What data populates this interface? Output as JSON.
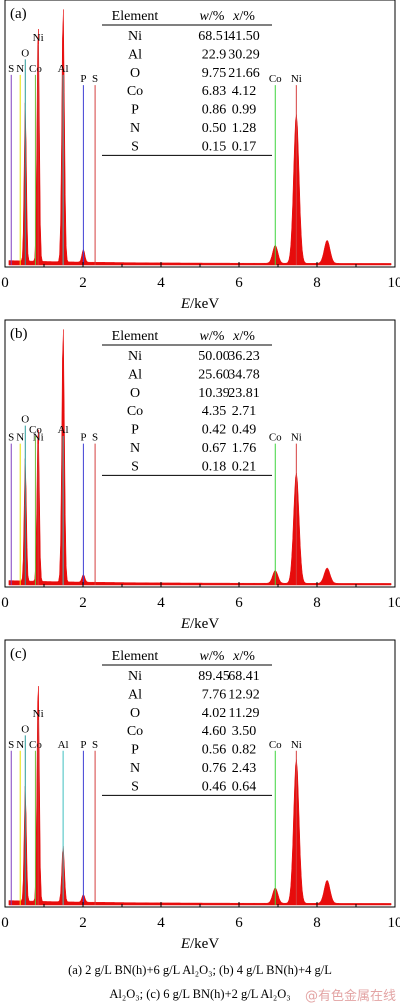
{
  "chart_data": [
    {
      "type": "area",
      "panel_label": "(a)",
      "xlabel_italic": "E",
      "xlabel_unit": "/keV",
      "xlim": [
        0,
        10
      ],
      "xticks": [
        "0",
        "2",
        "4",
        "6",
        "8",
        "10"
      ],
      "table": {
        "headers": [
          "Element",
          "w/%",
          "x/%"
        ],
        "rows": [
          [
            "Ni",
            "68.51",
            "41.50"
          ],
          [
            "Al",
            "22.9",
            "30.29"
          ],
          [
            "O",
            "9.75",
            "21.66"
          ],
          [
            "Co",
            "6.83",
            "4.12"
          ],
          [
            "P",
            "0.86",
            "0.99"
          ],
          [
            "N",
            "0.50",
            "1.28"
          ],
          [
            "S",
            "0.15",
            "0.17"
          ]
        ]
      },
      "markers": [
        {
          "label": "S",
          "x": 0.16,
          "h": 0.74,
          "color": "#7f3fbf"
        },
        {
          "label": "N",
          "x": 0.39,
          "h": 0.74,
          "color": "#e8e000"
        },
        {
          "label": "O",
          "x": 0.52,
          "h": 0.8,
          "color": "#2a9a9a"
        },
        {
          "label": "Co",
          "x": 0.78,
          "h": 0.74,
          "color": "#6fbf3f"
        },
        {
          "label": "Ni",
          "x": 0.85,
          "h": 0.86,
          "color": "#d43f3f"
        },
        {
          "label": "Al",
          "x": 1.49,
          "h": 0.74,
          "color": "#3fbfbf"
        },
        {
          "label": "P",
          "x": 2.01,
          "h": 0.7,
          "color": "#3f3fd4"
        },
        {
          "label": "S",
          "x": 2.31,
          "h": 0.7,
          "color": "#d43f3f"
        },
        {
          "label": "Co",
          "x": 6.93,
          "h": 0.7,
          "color": "#3fd43f"
        },
        {
          "label": "Ni",
          "x": 7.47,
          "h": 0.7,
          "color": "#d43f3f"
        }
      ],
      "peaks": [
        {
          "x": 0.52,
          "h": 0.62
        },
        {
          "x": 0.85,
          "h": 0.95
        },
        {
          "x": 1.49,
          "h": 1.0
        },
        {
          "x": 2.01,
          "h": 0.05
        },
        {
          "x": 6.93,
          "h": 0.07
        },
        {
          "x": 7.47,
          "h": 0.58
        },
        {
          "x": 8.26,
          "h": 0.09
        }
      ]
    },
    {
      "type": "area",
      "panel_label": "(b)",
      "xlabel_italic": "E",
      "xlabel_unit": "/keV",
      "xlim": [
        0,
        10
      ],
      "xticks": [
        "0",
        "2",
        "4",
        "6",
        "8",
        "10"
      ],
      "table": {
        "headers": [
          "Element",
          "w/%",
          "x/%"
        ],
        "rows": [
          [
            "Ni",
            "50.00",
            "36.23"
          ],
          [
            "Al",
            "25.60",
            "34.78"
          ],
          [
            "O",
            "10.39",
            "23.81"
          ],
          [
            "Co",
            "4.35",
            "2.71"
          ],
          [
            "P",
            "0.42",
            "0.49"
          ],
          [
            "N",
            "0.67",
            "1.76"
          ],
          [
            "S",
            "0.18",
            "0.21"
          ]
        ]
      },
      "markers": [
        {
          "label": "S",
          "x": 0.16,
          "h": 0.55,
          "color": "#7f3fbf"
        },
        {
          "label": "N",
          "x": 0.39,
          "h": 0.55,
          "color": "#e8e000"
        },
        {
          "label": "O",
          "x": 0.52,
          "h": 0.62,
          "color": "#2a9a9a"
        },
        {
          "label": "Co",
          "x": 0.78,
          "h": 0.58,
          "color": "#6fbf3f"
        },
        {
          "label": "Ni",
          "x": 0.85,
          "h": 0.55,
          "color": "#d43f3f"
        },
        {
          "label": "Al",
          "x": 1.49,
          "h": 0.58,
          "color": "#3fbfbf"
        },
        {
          "label": "P",
          "x": 2.01,
          "h": 0.55,
          "color": "#3f3fd4"
        },
        {
          "label": "S",
          "x": 2.31,
          "h": 0.55,
          "color": "#d43f3f"
        },
        {
          "label": "Co",
          "x": 6.93,
          "h": 0.55,
          "color": "#3fd43f"
        },
        {
          "label": "Ni",
          "x": 7.47,
          "h": 0.55,
          "color": "#d43f3f"
        }
      ],
      "peaks": [
        {
          "x": 0.52,
          "h": 0.48
        },
        {
          "x": 0.85,
          "h": 0.62
        },
        {
          "x": 1.49,
          "h": 1.0
        },
        {
          "x": 2.01,
          "h": 0.03
        },
        {
          "x": 6.93,
          "h": 0.05
        },
        {
          "x": 7.47,
          "h": 0.43
        },
        {
          "x": 8.26,
          "h": 0.06
        }
      ]
    },
    {
      "type": "area",
      "panel_label": "(c)",
      "xlabel_italic": "E",
      "xlabel_unit": "/keV",
      "xlim": [
        0,
        10
      ],
      "xticks": [
        "0",
        "2",
        "4",
        "6",
        "8",
        "10"
      ],
      "table": {
        "headers": [
          "Element",
          "w/%",
          "x/%"
        ],
        "rows": [
          [
            "Ni",
            "89.45",
            "68.41"
          ],
          [
            "Al",
            "7.76",
            "12.92"
          ],
          [
            "O",
            "4.02",
            "11.29"
          ],
          [
            "Co",
            "4.60",
            "3.50"
          ],
          [
            "P",
            "0.56",
            "0.82"
          ],
          [
            "N",
            "0.76",
            "2.43"
          ],
          [
            "S",
            "0.46",
            "0.64"
          ]
        ]
      },
      "markers": [
        {
          "label": "S",
          "x": 0.16,
          "h": 0.6,
          "color": "#7f3fbf"
        },
        {
          "label": "N",
          "x": 0.39,
          "h": 0.6,
          "color": "#e8e000"
        },
        {
          "label": "O",
          "x": 0.52,
          "h": 0.66,
          "color": "#2a9a9a"
        },
        {
          "label": "Co",
          "x": 0.78,
          "h": 0.6,
          "color": "#6fbf3f"
        },
        {
          "label": "Ni",
          "x": 0.85,
          "h": 0.72,
          "color": "#d43f3f"
        },
        {
          "label": "Al",
          "x": 1.49,
          "h": 0.6,
          "color": "#3fbfbf"
        },
        {
          "label": "P",
          "x": 2.01,
          "h": 0.6,
          "color": "#3f3fd4"
        },
        {
          "label": "S",
          "x": 2.31,
          "h": 0.6,
          "color": "#d43f3f"
        },
        {
          "label": "Co",
          "x": 6.93,
          "h": 0.6,
          "color": "#3fd43f"
        },
        {
          "label": "Ni",
          "x": 7.47,
          "h": 0.6,
          "color": "#d43f3f"
        }
      ],
      "peaks": [
        {
          "x": 0.52,
          "h": 0.45
        },
        {
          "x": 0.85,
          "h": 0.88
        },
        {
          "x": 1.49,
          "h": 0.22
        },
        {
          "x": 2.01,
          "h": 0.03
        },
        {
          "x": 6.93,
          "h": 0.06
        },
        {
          "x": 7.47,
          "h": 0.56
        },
        {
          "x": 8.26,
          "h": 0.09
        }
      ]
    }
  ],
  "spectrum_color": "#e60000",
  "caption": {
    "line1": "(a) 2 g/L BN(h)+6 g/L Al₂O₃; (b) 4 g/L BN(h)+4 g/L",
    "line2": "Al₂O₃; (c) 6 g/L BN(h)+2 g/L Al₂O₃"
  },
  "watermark": "@有色金属在线"
}
